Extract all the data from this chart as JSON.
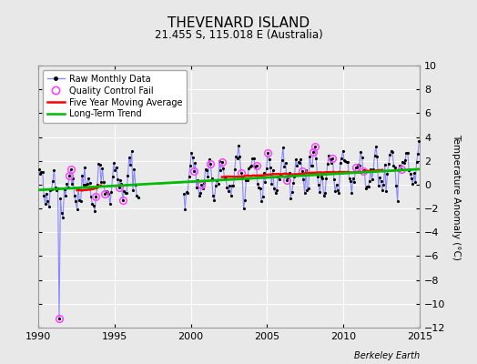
{
  "title": "THEVENARD ISLAND",
  "subtitle": "21.455 S, 115.018 E (Australia)",
  "ylabel": "Temperature Anomaly (°C)",
  "credit": "Berkeley Earth",
  "xlim": [
    1990,
    2015
  ],
  "ylim": [
    -12,
    10
  ],
  "yticks": [
    -12,
    -10,
    -8,
    -6,
    -4,
    -2,
    0,
    2,
    4,
    6,
    8,
    10
  ],
  "xticks": [
    1990,
    1995,
    2000,
    2005,
    2010,
    2015
  ],
  "bg_color": "#e8e8e8",
  "plot_bg_color": "#eaeaea",
  "raw_line_color": "#8888ff",
  "qc_fail_color": "#ff44ff",
  "moving_avg_color": "#ff0000",
  "trend_color": "#00bb00",
  "trend_x": [
    1990,
    2015
  ],
  "trend_y": [
    -0.45,
    1.3
  ],
  "gap_start": 1996.5,
  "gap_end": 1999.5
}
